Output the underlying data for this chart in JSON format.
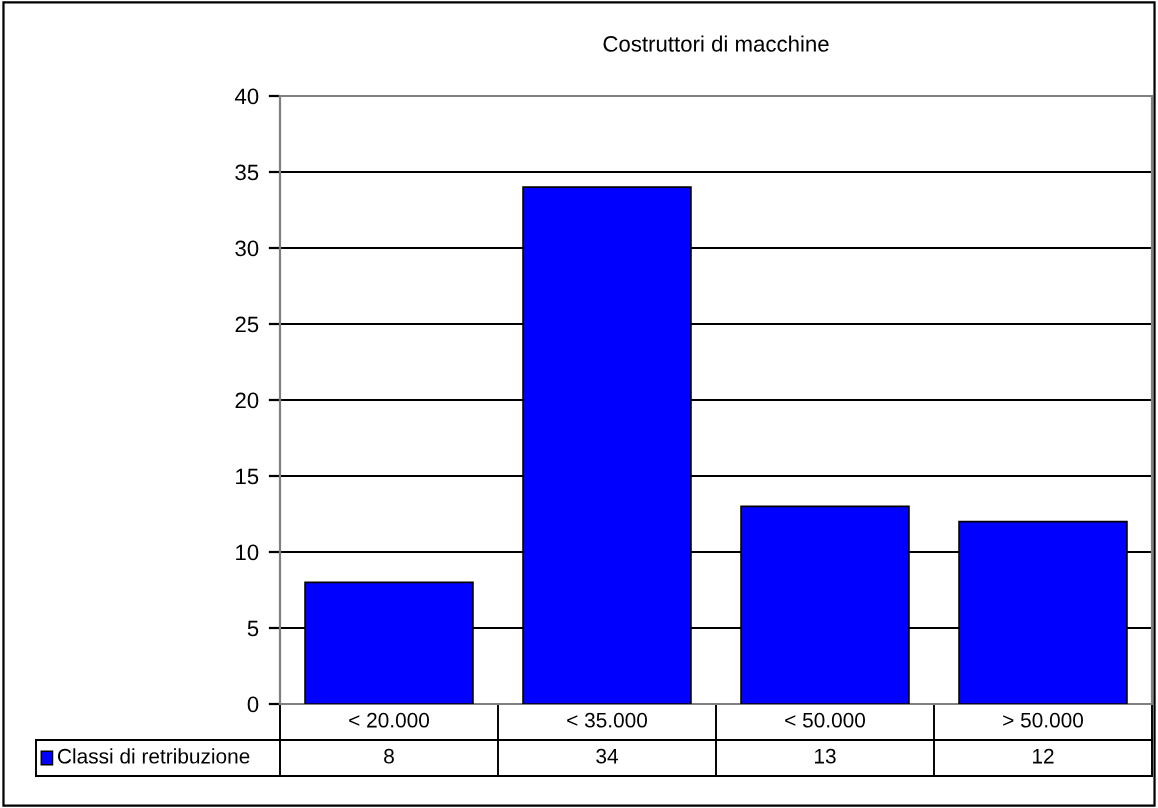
{
  "chart_data": {
    "type": "bar",
    "title": "Costruttori di macchine",
    "categories": [
      "< 20.000",
      "< 35.000",
      "< 50.000",
      "> 50.000"
    ],
    "series": [
      {
        "name": "Classi di retribuzione",
        "color": "#0000ff",
        "values": [
          8,
          34,
          13,
          12
        ]
      }
    ],
    "ylim": [
      0,
      40
    ],
    "yticks": [
      0,
      5,
      10,
      15,
      20,
      25,
      30,
      35,
      40
    ],
    "grid": "y",
    "data_labels": true,
    "legend": "bottom left"
  }
}
